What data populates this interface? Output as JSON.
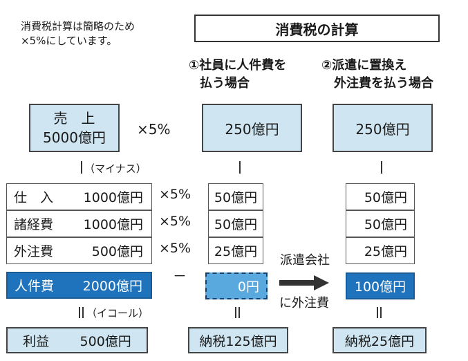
{
  "note": {
    "line1": "消費税計算は簡略のため",
    "line2": "×5%にしています。"
  },
  "title": "消費税の計算",
  "left": {
    "sales_label": "売　上",
    "sales_value": "5000億円",
    "sales_multiplier": "×5%",
    "minus_label": "（マイナス）",
    "rows": [
      {
        "label": "仕　入",
        "value": "1000億円",
        "multiplier": "×5%"
      },
      {
        "label": "諸経費",
        "value": "1000億円",
        "multiplier": "×5%"
      },
      {
        "label": "外注費",
        "value": "500億円",
        "multiplier": "×5%"
      }
    ],
    "personnel_label": "人件費",
    "personnel_value": "2000億円",
    "minus_sign": "－",
    "equal_label": "（イコール）",
    "profit_label": "利益",
    "profit_value": "500億円"
  },
  "case1": {
    "header_line1": "①社員に人件費を",
    "header_line2": "払う場合",
    "tax": "250億円",
    "rows": [
      "50億円",
      "50億円",
      "25億円"
    ],
    "personnel": "0円",
    "result": "納税125億円"
  },
  "case2": {
    "header_line1": "②派遣に置換え",
    "header_line2": "外注費を払う場合",
    "tax": "250億円",
    "rows": [
      "50億円",
      "50億円",
      "25億円"
    ],
    "personnel": "100億円",
    "result": "納税25億円"
  },
  "arrow_label": {
    "line1": "派遣会社",
    "line2": "に外注費"
  },
  "colors": {
    "light_blue": "#cfe6f2",
    "dark_blue": "#1f73bd",
    "mid_blue": "#5aa9de"
  }
}
